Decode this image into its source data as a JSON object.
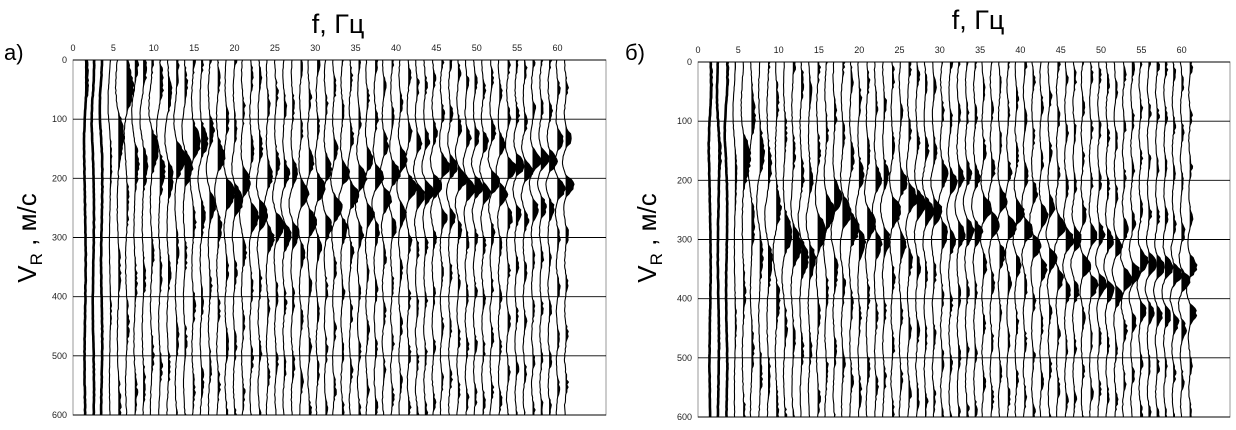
{
  "chart_data": [
    {
      "type": "other",
      "panel_label": "а)",
      "xlabel": "f, Гц",
      "ylabel": "V",
      "ylabel_sub": "R",
      "ylabel_unit": " , м/с",
      "xlim": [
        0,
        66
      ],
      "ylim": [
        0,
        600
      ],
      "x_ticks": [
        0,
        5,
        10,
        15,
        20,
        25,
        30,
        35,
        40,
        45,
        50,
        55,
        60
      ],
      "y_ticks": [
        0,
        100,
        200,
        300,
        400,
        500,
        600
      ],
      "trace_freq_range": [
        1.5,
        61
      ],
      "trace_count": 59,
      "horizontal_grid": true,
      "dispersion_ridge": [
        [
          6,
          80
        ],
        [
          10,
          120
        ],
        [
          15,
          170
        ],
        [
          20,
          230
        ],
        [
          25,
          260
        ],
        [
          30,
          240
        ],
        [
          40,
          210
        ],
        [
          50,
          200
        ],
        [
          60,
          190
        ]
      ]
    },
    {
      "type": "other",
      "panel_label": "б)",
      "xlabel": "f, Гц",
      "ylabel": "V",
      "ylabel_sub": "R",
      "ylabel_unit": " , м/с",
      "xlim": [
        0,
        66
      ],
      "ylim": [
        0,
        600
      ],
      "x_ticks": [
        0,
        5,
        10,
        15,
        20,
        25,
        30,
        35,
        40,
        45,
        50,
        55,
        60
      ],
      "y_ticks": [
        0,
        100,
        200,
        300,
        400,
        500,
        600
      ],
      "trace_freq_range": [
        1.5,
        61
      ],
      "trace_count": 59,
      "horizontal_grid": true,
      "dispersion_ridge": [
        [
          5,
          100
        ],
        [
          10,
          330
        ],
        [
          15,
          270
        ],
        [
          20,
          260
        ],
        [
          30,
          240
        ],
        [
          40,
          280
        ],
        [
          50,
          350
        ],
        [
          60,
          380
        ]
      ]
    }
  ]
}
